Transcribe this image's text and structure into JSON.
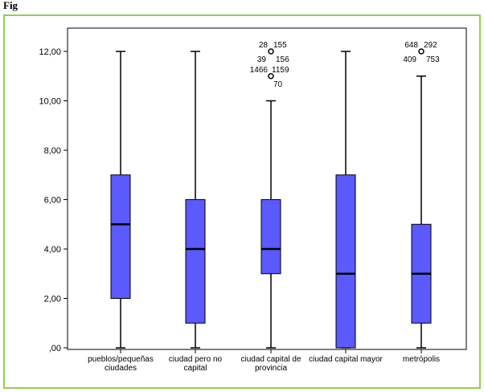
{
  "caption": "Fig",
  "chart_data": {
    "type": "boxplot",
    "ylim": [
      0,
      13
    ],
    "yticks": [
      0,
      2,
      4,
      6,
      8,
      10,
      12
    ],
    "ytick_labels": [
      ",00",
      "2,00",
      "4,00",
      "6,00",
      "8,00",
      "10,00",
      "12,00"
    ],
    "box_color": "#5a5aff",
    "categories": [
      {
        "label": [
          "pueblos/pequeñas",
          "ciudades"
        ],
        "min": 0,
        "q1": 2,
        "median": 5,
        "q3": 7,
        "max": 12,
        "outliers": []
      },
      {
        "label": [
          "ciudad pero no",
          "capital"
        ],
        "min": 0,
        "q1": 1,
        "median": 4,
        "q3": 6,
        "max": 12,
        "outliers": []
      },
      {
        "label": [
          "ciudad capital de",
          "provincia"
        ],
        "min": 0,
        "q1": 3,
        "median": 4,
        "q3": 6,
        "max": 10,
        "outliers": [
          {
            "value": 12,
            "ids": [
              "28",
              "155",
              "39",
              "156"
            ]
          },
          {
            "value": 11,
            "ids": [
              "1466",
              "1159",
              "70"
            ]
          }
        ]
      },
      {
        "label": [
          "ciudad capital mayor"
        ],
        "min": 0,
        "q1": 0,
        "median": 3,
        "q3": 7,
        "max": 12,
        "outliers": []
      },
      {
        "label": [
          "metrópolis"
        ],
        "min": 0,
        "q1": 1,
        "median": 3,
        "q3": 5,
        "max": 11,
        "outliers": [
          {
            "value": 12,
            "ids": [
              "648",
              "292",
              "409",
              "753"
            ]
          }
        ]
      }
    ]
  }
}
